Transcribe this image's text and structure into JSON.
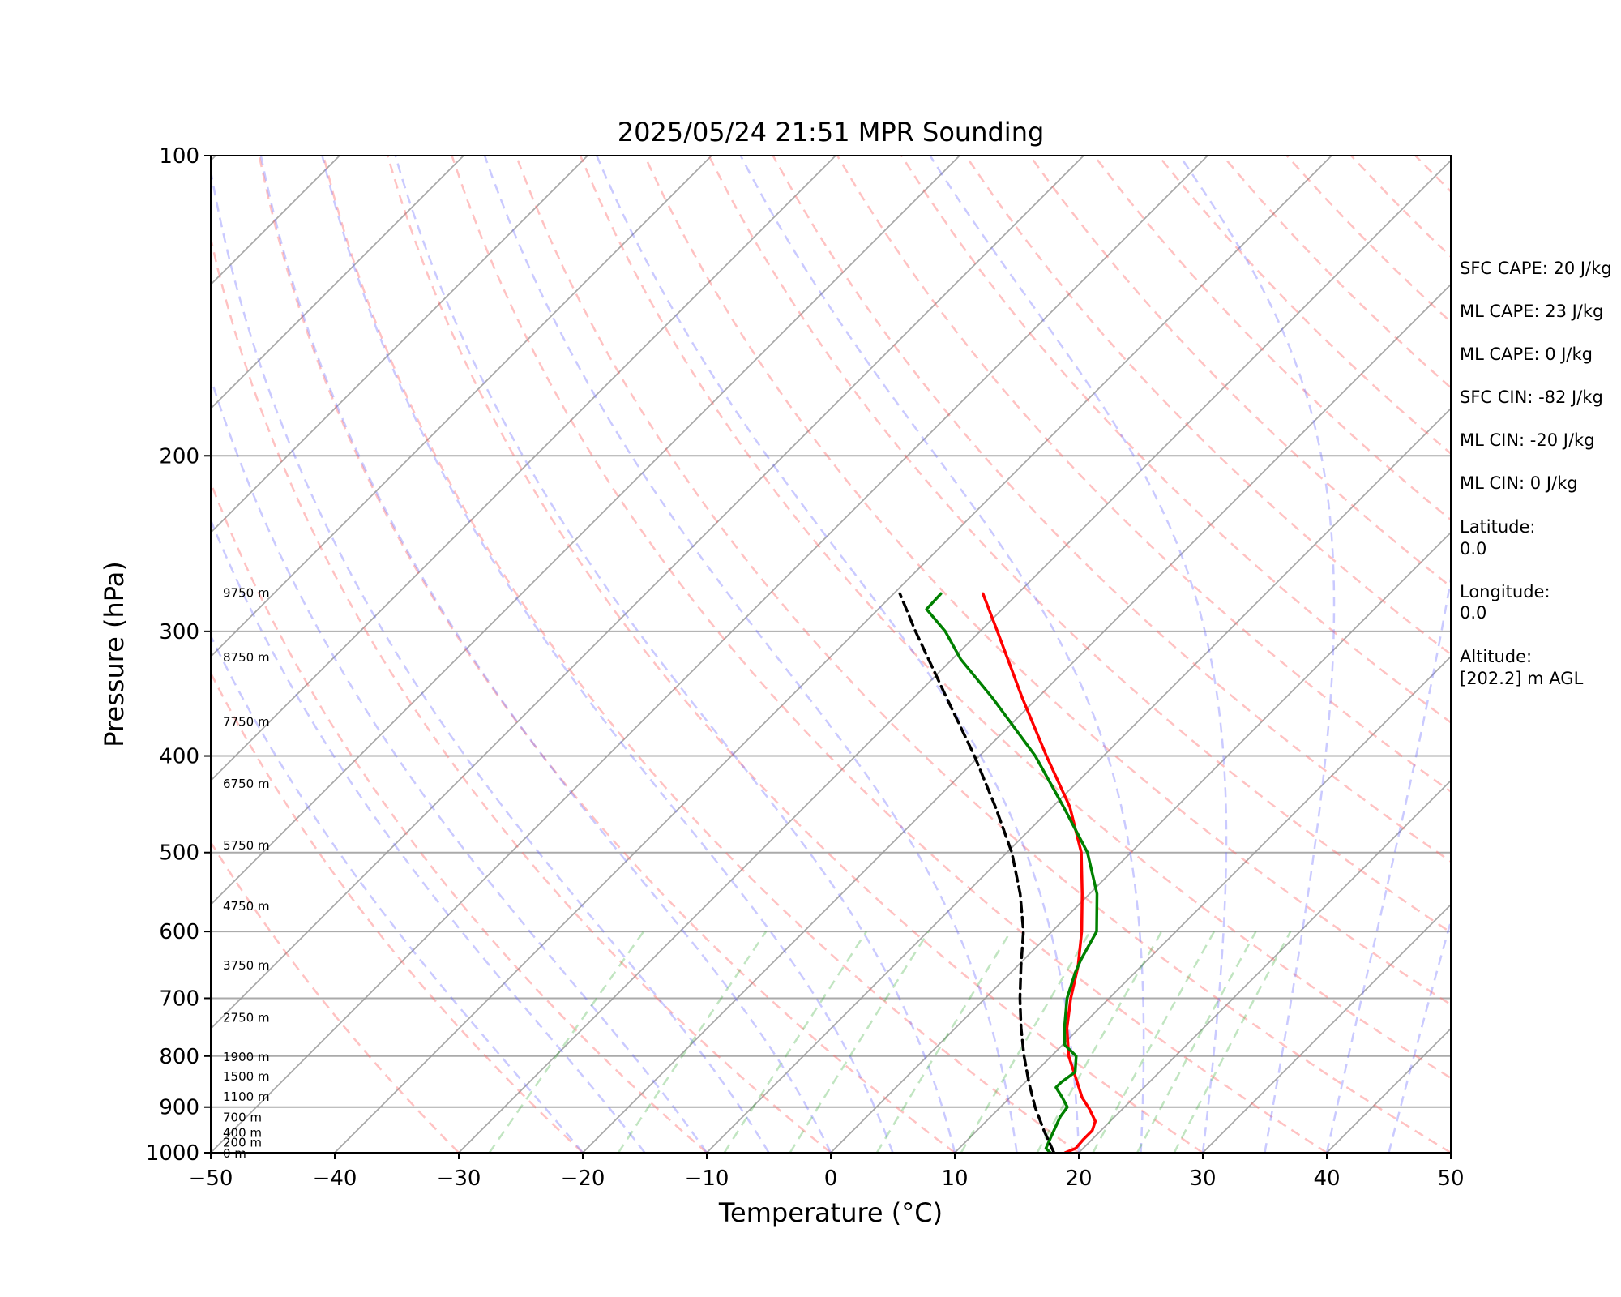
{
  "chart_data": {
    "type": "line",
    "title": "2025/05/24 21:51 MPR Sounding",
    "xlabel": "Temperature (°C)",
    "ylabel": "Pressure (hPa)",
    "xlim": [
      -50,
      50
    ],
    "ylim": [
      1000,
      100
    ],
    "y_scale": "log",
    "x_ticks": [
      "−50",
      "−40",
      "−30",
      "−20",
      "−10",
      "0",
      "10",
      "20",
      "30",
      "40",
      "50"
    ],
    "y_ticks": [
      "1000",
      "900",
      "800",
      "700",
      "600",
      "500",
      "400",
      "300",
      "200",
      "100"
    ],
    "grid": true,
    "height_labels": [
      {
        "p": 1000,
        "text": "0 m"
      },
      {
        "p": 975,
        "text": "200 m"
      },
      {
        "p": 953,
        "text": "400 m"
      },
      {
        "p": 920,
        "text": "700 m"
      },
      {
        "p": 877,
        "text": "1100 m"
      },
      {
        "p": 837,
        "text": "1500 m"
      },
      {
        "p": 800,
        "text": "1900 m"
      },
      {
        "p": 731,
        "text": "2750 m"
      },
      {
        "p": 648,
        "text": "3750 m"
      },
      {
        "p": 565,
        "text": "4750 m"
      },
      {
        "p": 491,
        "text": "5750 m"
      },
      {
        "p": 426,
        "text": "6750 m"
      },
      {
        "p": 369,
        "text": "7750 m"
      },
      {
        "p": 318,
        "text": "8750 m"
      },
      {
        "p": 274,
        "text": "9750 m"
      }
    ],
    "stats": [
      "SFC CAPE: 20 J/kg",
      "ML CAPE: 23 J/kg",
      "ML CAPE: 0 J/kg",
      "SFC CIN: -82 J/kg",
      "ML CIN: -20 J/kg",
      "ML CIN: 0 J/kg",
      "Latitude:",
      "0.0",
      "Longitude:",
      "0.0",
      "Altitude:",
      "[202.2] m AGL"
    ],
    "series": [
      {
        "color": "#ff0000",
        "points": [
          [
            1000,
            18.9
          ],
          [
            990,
            19.4
          ],
          [
            970,
            19.3
          ],
          [
            950,
            19.3
          ],
          [
            930,
            18.8
          ],
          [
            905,
            17.4
          ],
          [
            880,
            15.8
          ],
          [
            850,
            14.2
          ],
          [
            800,
            11.4
          ],
          [
            750,
            9.0
          ],
          [
            700,
            6.9
          ],
          [
            650,
            4.9
          ],
          [
            600,
            2.4
          ],
          [
            550,
            -0.6
          ],
          [
            500,
            -4.0
          ],
          [
            450,
            -8.6
          ],
          [
            400,
            -14.6
          ],
          [
            350,
            -21.2
          ],
          [
            300,
            -28.6
          ],
          [
            275,
            -32.8
          ]
        ]
      },
      {
        "color": "#008000",
        "points": [
          [
            1000,
            17.7
          ],
          [
            990,
            17.0
          ],
          [
            970,
            16.6
          ],
          [
            950,
            16.2
          ],
          [
            920,
            15.6
          ],
          [
            900,
            15.4
          ],
          [
            880,
            14.2
          ],
          [
            860,
            12.9
          ],
          [
            850,
            12.9
          ],
          [
            830,
            13.2
          ],
          [
            800,
            12.0
          ],
          [
            780,
            10.2
          ],
          [
            750,
            8.8
          ],
          [
            700,
            6.6
          ],
          [
            660,
            5.2
          ],
          [
            640,
            4.6
          ],
          [
            600,
            3.6
          ],
          [
            550,
            0.6
          ],
          [
            500,
            -3.5
          ],
          [
            450,
            -9.1
          ],
          [
            400,
            -15.5
          ],
          [
            350,
            -23.6
          ],
          [
            320,
            -29.3
          ],
          [
            300,
            -32.8
          ],
          [
            285,
            -36.1
          ],
          [
            275,
            -36.2
          ]
        ]
      },
      {
        "color": "#000000",
        "dashed": true,
        "points": [
          [
            1000,
            18.0
          ],
          [
            950,
            15.4
          ],
          [
            900,
            12.8
          ],
          [
            850,
            10.3
          ],
          [
            800,
            7.8
          ],
          [
            750,
            5.3
          ],
          [
            700,
            2.8
          ],
          [
            650,
            0.3
          ],
          [
            600,
            -2.3
          ],
          [
            550,
            -5.6
          ],
          [
            500,
            -9.6
          ],
          [
            450,
            -14.6
          ],
          [
            400,
            -20.4
          ],
          [
            350,
            -27.3
          ],
          [
            300,
            -35.2
          ],
          [
            275,
            -39.5
          ]
        ]
      }
    ]
  }
}
